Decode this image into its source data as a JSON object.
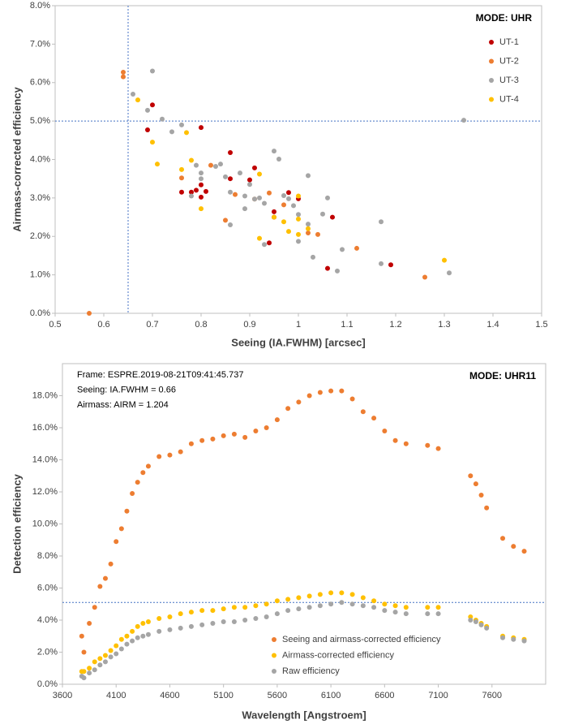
{
  "chart_data": [
    {
      "type": "scatter",
      "x_label": "Seeing (IA.FWHM) [arcsec]",
      "y_label": "Airmass-corrected efficiency",
      "annotations": [
        "MODE: UHR"
      ],
      "xlim": [
        0.5,
        1.5
      ],
      "xticks": [
        0.5,
        0.6,
        0.7,
        0.8,
        0.9,
        1,
        1.1,
        1.2,
        1.3,
        1.4,
        1.5
      ],
      "ylim": [
        0,
        8
      ],
      "yticks": [
        {
          "value": 0,
          "label": "0.0%"
        },
        {
          "value": 1,
          "label": "1.0%"
        },
        {
          "value": 2,
          "label": "2.0%"
        },
        {
          "value": 3,
          "label": "3.0%"
        },
        {
          "value": 4,
          "label": "4.0%"
        },
        {
          "value": 5,
          "label": "5.0%"
        },
        {
          "value": 6,
          "label": "6.0%"
        },
        {
          "value": 7,
          "label": "7.0%"
        },
        {
          "value": 8,
          "label": "8.0%"
        }
      ],
      "reference_lines": {
        "x": 0.65,
        "y": 5
      },
      "legend": "upper right",
      "grid": false,
      "series": [
        {
          "name": "UT-1",
          "color": "#c00000",
          "x": [
            0.69,
            0.7,
            0.76,
            0.78,
            0.79,
            0.8,
            0.8,
            0.8,
            0.81,
            0.86,
            0.86,
            0.9,
            0.91,
            0.94,
            0.95,
            0.95,
            0.98,
            1.0,
            1.07,
            1.06,
            1.19
          ],
          "values": [
            4.77,
            5.42,
            3.15,
            3.15,
            3.2,
            4.83,
            3.34,
            3.02,
            3.17,
            4.18,
            3.5,
            3.47,
            3.78,
            1.83,
            2.64,
            2.5,
            3.14,
            2.98,
            2.5,
            1.17,
            1.26
          ]
        },
        {
          "name": "UT-2",
          "color": "#ed7d31",
          "x": [
            0.57,
            0.64,
            0.64,
            0.76,
            0.82,
            0.85,
            0.91,
            0.94,
            0.97,
            1.02,
            1.04,
            1.12,
            1.26,
            0.87
          ],
          "values": [
            0,
            6.27,
            6.15,
            3.52,
            3.85,
            2.42,
            2.97,
            3.13,
            2.82,
            2.09,
            2.05,
            1.69,
            0.94,
            3.09
          ]
        },
        {
          "name": "UT-3",
          "color": "#a5a5a5",
          "x": [
            0.66,
            0.7,
            0.69,
            0.72,
            0.74,
            0.76,
            0.78,
            0.79,
            0.8,
            0.8,
            0.83,
            0.84,
            0.85,
            0.86,
            0.88,
            0.89,
            0.9,
            0.91,
            0.92,
            0.93,
            0.93,
            0.95,
            0.96,
            0.97,
            0.98,
            0.99,
            1.0,
            1.0,
            1.02,
            1.02,
            1.03,
            1.05,
            1.06,
            1.08,
            1.09,
            1.17,
            1.17,
            1.31,
            1.34,
            0.86,
            0.89
          ],
          "values": [
            5.7,
            6.3,
            5.28,
            5.05,
            4.72,
            4.9,
            3.05,
            3.85,
            3.65,
            3.5,
            3.82,
            3.88,
            3.55,
            3.15,
            3.65,
            3.05,
            3.35,
            2.97,
            3.0,
            2.86,
            1.79,
            4.22,
            4.01,
            3.06,
            2.98,
            2.8,
            2.57,
            1.87,
            3.58,
            2.32,
            1.46,
            2.58,
            3.0,
            1.1,
            1.66,
            2.38,
            1.29,
            1.05,
            5.02,
            2.3,
            2.72
          ]
        },
        {
          "name": "UT-4",
          "color": "#ffc000",
          "x": [
            0.67,
            0.7,
            0.71,
            0.77,
            0.78,
            0.8,
            0.92,
            0.92,
            0.95,
            0.97,
            0.98,
            1.0,
            1.0,
            1.02,
            1.3,
            0.76,
            1.0
          ],
          "values": [
            5.55,
            4.45,
            3.88,
            4.7,
            3.98,
            2.72,
            1.95,
            3.62,
            2.5,
            2.38,
            2.13,
            3.05,
            2.45,
            2.2,
            1.38,
            3.74,
            2.05
          ]
        }
      ]
    },
    {
      "type": "scatter",
      "x_label": "Wavelength [Angstroem]",
      "y_label": "Detection efficiency",
      "annotations": [
        "MODE: UHR11",
        "Frame: ESPRE.2019-08-21T09:41:45.737",
        "Seeing: IA.FWHM = 0.66",
        "Airmass:  AIRM = 1.204"
      ],
      "xlim": [
        3600,
        8100
      ],
      "xticks": [
        3600,
        4100,
        4600,
        5100,
        5600,
        6100,
        6600,
        7100,
        7600
      ],
      "ylim": [
        0,
        20
      ],
      "yticks": [
        {
          "value": 0,
          "label": "0.0%"
        },
        {
          "value": 2,
          "label": "2.0%"
        },
        {
          "value": 4,
          "label": "4.0%"
        },
        {
          "value": 6,
          "label": "6.0%"
        },
        {
          "value": 8,
          "label": "8.0%"
        },
        {
          "value": 10,
          "label": "10.0%"
        },
        {
          "value": 12,
          "label": "12.0%"
        },
        {
          "value": 14,
          "label": "14.0%"
        },
        {
          "value": 16,
          "label": "16.0%"
        },
        {
          "value": 18,
          "label": "18.0%"
        }
      ],
      "reference_lines": {
        "y": 5.1
      },
      "legend": "lower right",
      "grid": false,
      "x": [
        3780,
        3800,
        3850,
        3900,
        3950,
        4000,
        4050,
        4100,
        4150,
        4200,
        4250,
        4300,
        4350,
        4400,
        4500,
        4600,
        4700,
        4800,
        4900,
        5000,
        5100,
        5200,
        5300,
        5400,
        5500,
        5600,
        5700,
        5800,
        5900,
        6000,
        6100,
        6200,
        6300,
        6400,
        6500,
        6600,
        6700,
        6800,
        7000,
        7100,
        7400,
        7450,
        7500,
        7550,
        7700,
        7800,
        7900
      ],
      "series": [
        {
          "name": "Seeing and airmass-corrected efficiency",
          "color": "#ed7d31",
          "values": [
            3.0,
            2.0,
            3.8,
            4.8,
            6.1,
            6.6,
            7.5,
            8.9,
            9.7,
            10.8,
            11.9,
            12.6,
            13.2,
            13.6,
            14.2,
            14.3,
            14.5,
            15.0,
            15.2,
            15.3,
            15.5,
            15.6,
            15.4,
            15.8,
            16.0,
            16.5,
            17.2,
            17.6,
            18.0,
            18.2,
            18.3,
            18.3,
            17.8,
            17.0,
            16.6,
            15.8,
            15.2,
            15.0,
            14.9,
            14.7,
            13.0,
            12.5,
            11.8,
            11.0,
            9.1,
            8.6,
            8.3
          ]
        },
        {
          "name": "Airmass-corrected efficiency",
          "color": "#ffc000",
          "values": [
            0.8,
            0.8,
            1.0,
            1.4,
            1.6,
            1.8,
            2.1,
            2.4,
            2.8,
            3.0,
            3.3,
            3.6,
            3.8,
            3.9,
            4.1,
            4.2,
            4.4,
            4.5,
            4.6,
            4.6,
            4.7,
            4.8,
            4.8,
            4.9,
            5.0,
            5.2,
            5.3,
            5.4,
            5.5,
            5.6,
            5.7,
            5.7,
            5.6,
            5.4,
            5.2,
            5.0,
            4.9,
            4.8,
            4.8,
            4.8,
            4.2,
            4.0,
            3.8,
            3.6,
            3.0,
            2.9,
            2.8
          ]
        },
        {
          "name": "Raw efficiency",
          "color": "#a5a5a5",
          "values": [
            0.5,
            0.4,
            0.7,
            0.9,
            1.2,
            1.4,
            1.7,
            1.9,
            2.2,
            2.5,
            2.7,
            2.9,
            3.0,
            3.1,
            3.3,
            3.4,
            3.5,
            3.6,
            3.7,
            3.8,
            3.9,
            3.9,
            4.0,
            4.1,
            4.2,
            4.4,
            4.6,
            4.7,
            4.8,
            4.9,
            5.0,
            5.1,
            5.0,
            4.9,
            4.8,
            4.6,
            4.5,
            4.4,
            4.4,
            4.4,
            4.0,
            3.9,
            3.7,
            3.5,
            2.9,
            2.8,
            2.7
          ]
        }
      ]
    }
  ]
}
